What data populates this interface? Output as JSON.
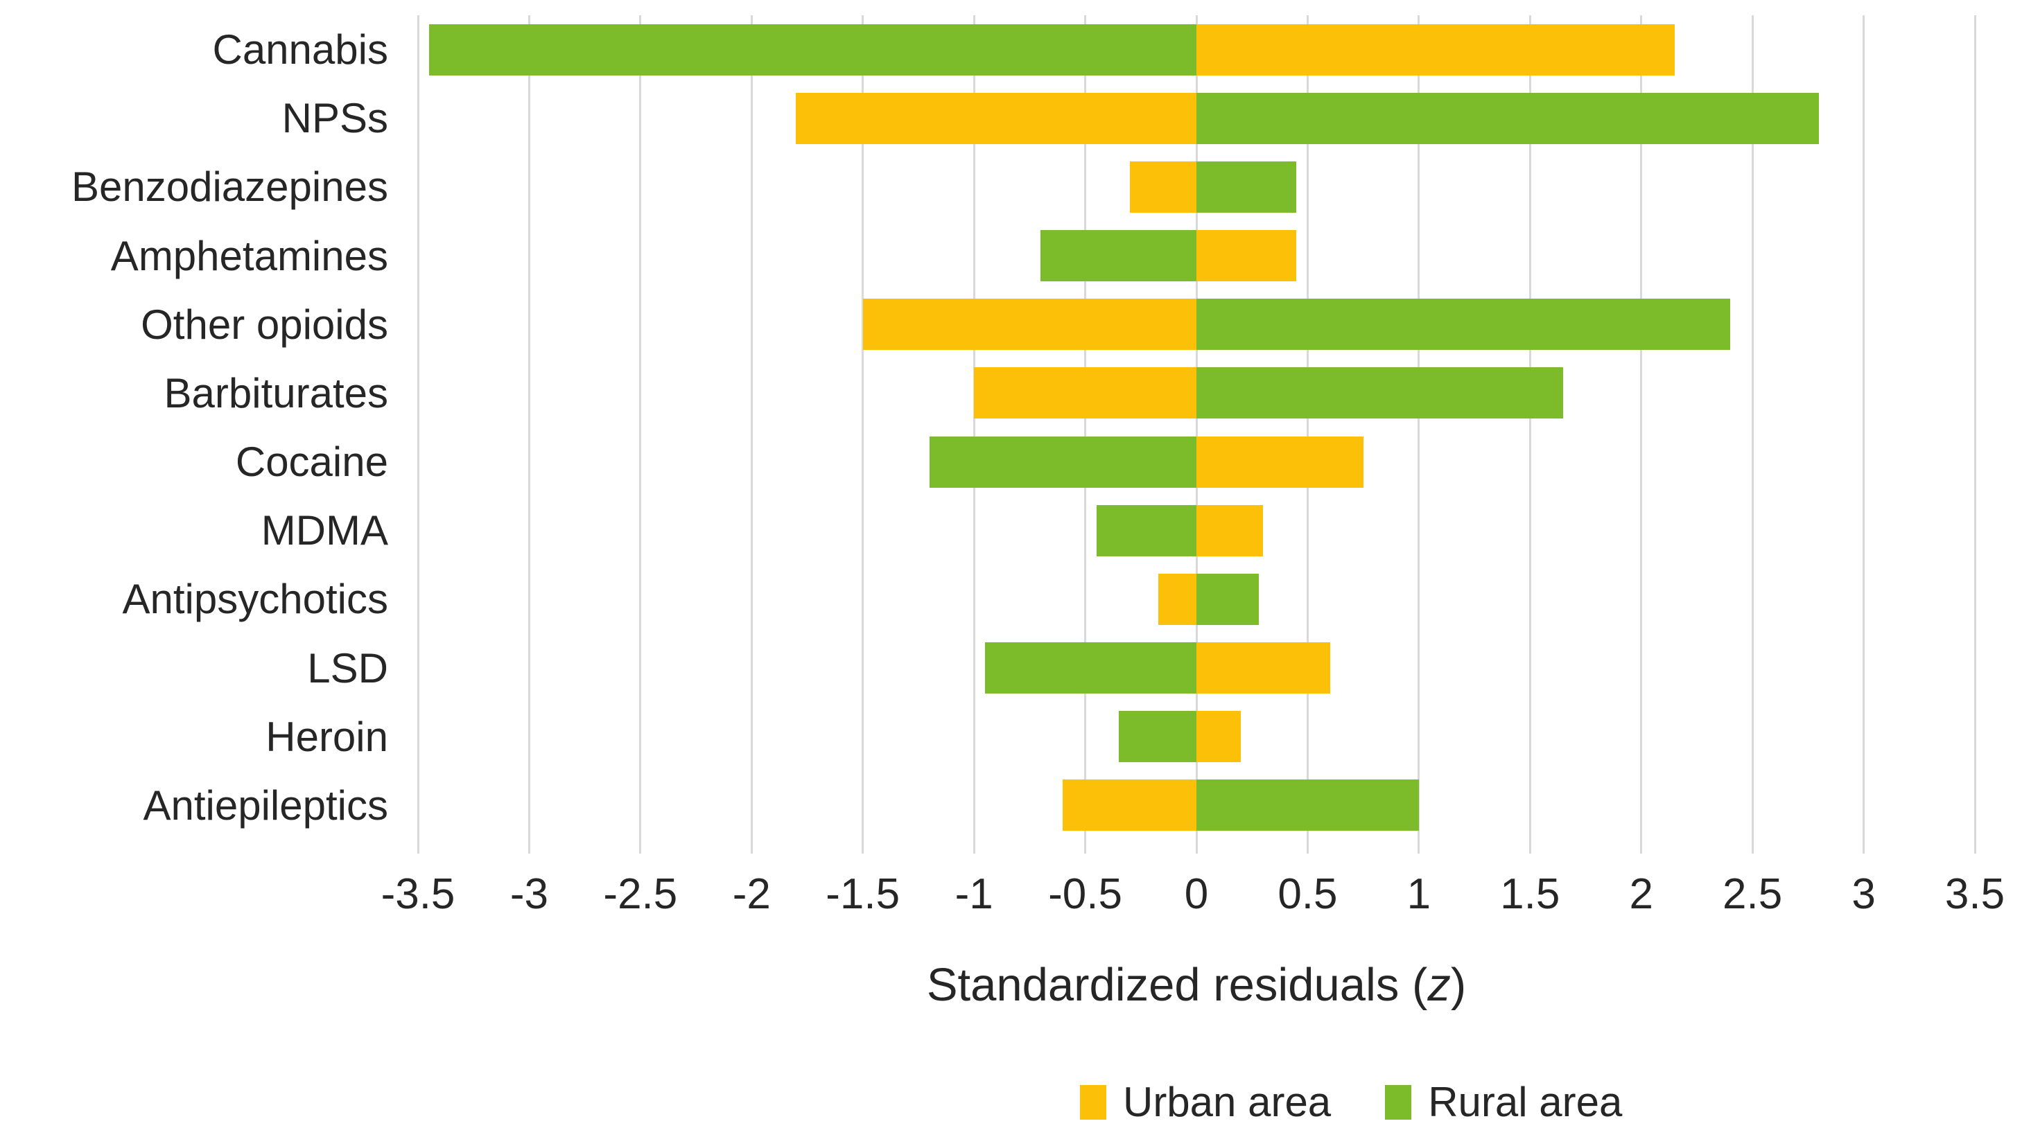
{
  "chart_data": {
    "type": "bar",
    "orientation": "horizontal-diverging",
    "categories": [
      "Cannabis",
      "NPSs",
      "Benzodiazepines",
      "Amphetamines",
      "Other opioids",
      "Barbiturates",
      "Cocaine",
      "MDMA",
      "Antipsychotics",
      "LSD",
      "Heroin",
      "Antiepileptics"
    ],
    "series": [
      {
        "name": "Urban area",
        "color": "#FDC008",
        "values": [
          2.15,
          -1.8,
          -0.3,
          0.45,
          -1.5,
          -1.0,
          0.75,
          0.3,
          -0.17,
          0.6,
          0.2,
          -0.6
        ]
      },
      {
        "name": "Rural area",
        "color": "#7CBB2A",
        "values": [
          -3.45,
          2.8,
          0.45,
          -0.7,
          2.4,
          1.65,
          -1.2,
          -0.45,
          0.28,
          -0.95,
          -0.35,
          1.0
        ]
      }
    ],
    "xlabel_prefix": "Standardized residuals (",
    "xlabel_italic": "z",
    "xlabel_suffix": ")",
    "xlim": [
      -3.5,
      3.5
    ],
    "xtick_step": 0.5,
    "tick_labels": [
      "-3.5",
      "-3",
      "-2.5",
      "-2",
      "-1.5",
      "-1",
      "-0.5",
      "0",
      "0.5",
      "1",
      "1.5",
      "2",
      "2.5",
      "3",
      "3.5"
    ],
    "grid": true,
    "legend_position": "bottom",
    "colors": {
      "gridline": "#D9D9D9",
      "text": "#262626",
      "background": "#FFFFFF"
    }
  },
  "legend": {
    "items": [
      {
        "label": "Urban area",
        "color": "#FDC008"
      },
      {
        "label": "Rural area",
        "color": "#7CBB2A"
      }
    ]
  }
}
